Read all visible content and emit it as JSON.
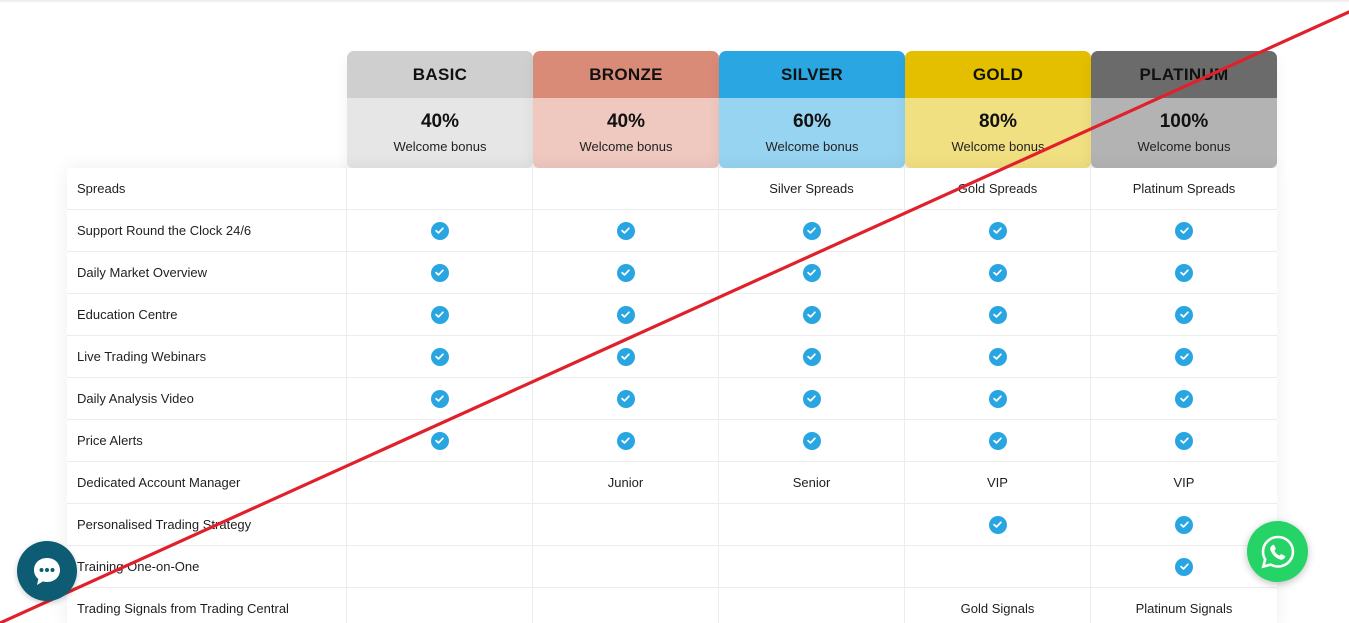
{
  "colors": {
    "basic_head": "#cfcfcf",
    "basic_body": "#e6e6e6",
    "bronze_head": "#d98b77",
    "bronze_body": "#efc8bf",
    "silver_head": "#2aa6e2",
    "silver_body": "#97d4f1",
    "gold_head": "#e3bf00",
    "gold_body": "#f1e081",
    "platinum_head": "#6b6b6b",
    "platinum_body": "#b3b3b3",
    "check": "#29a6e2",
    "strike_line": "#e0212c",
    "chat_bubble": "#0d5c73",
    "whatsapp": "#25d366"
  },
  "plans": [
    {
      "name": "BASIC",
      "percent": "40%",
      "bonus": "Welcome bonus"
    },
    {
      "name": "BRONZE",
      "percent": "40%",
      "bonus": "Welcome bonus"
    },
    {
      "name": "SILVER",
      "percent": "60%",
      "bonus": "Welcome bonus"
    },
    {
      "name": "GOLD",
      "percent": "80%",
      "bonus": "Welcome bonus"
    },
    {
      "name": "PLATINUM",
      "percent": "100%",
      "bonus": "Welcome bonus"
    }
  ],
  "features": [
    {
      "label": "Spreads",
      "cells": [
        "",
        "",
        "Silver Spreads",
        "Gold Spreads",
        "Platinum Spreads"
      ]
    },
    {
      "label": "Support Round the Clock 24/6",
      "cells": [
        "check",
        "check",
        "check",
        "check",
        "check"
      ]
    },
    {
      "label": "Daily Market Overview",
      "cells": [
        "check",
        "check",
        "check",
        "check",
        "check"
      ]
    },
    {
      "label": "Education Centre",
      "cells": [
        "check",
        "check",
        "check",
        "check",
        "check"
      ]
    },
    {
      "label": "Live Trading Webinars",
      "cells": [
        "check",
        "check",
        "check",
        "check",
        "check"
      ]
    },
    {
      "label": "Daily Analysis Video",
      "cells": [
        "check",
        "check",
        "check",
        "check",
        "check"
      ]
    },
    {
      "label": "Price Alerts",
      "cells": [
        "check",
        "check",
        "check",
        "check",
        "check"
      ]
    },
    {
      "label": "Dedicated Account Manager",
      "cells": [
        "",
        "Junior",
        "Senior",
        "VIP",
        "VIP"
      ]
    },
    {
      "label": "Personalised Trading Strategy",
      "cells": [
        "",
        "",
        "",
        "check",
        "check"
      ]
    },
    {
      "label": "Training One-on-One",
      "cells": [
        "",
        "",
        "",
        "",
        "check"
      ]
    },
    {
      "label": "Trading Signals from Trading Central",
      "cells": [
        "",
        "",
        "",
        "Gold Signals",
        "Platinum Signals"
      ]
    }
  ],
  "icons": {
    "check": "check-circle-icon",
    "chat": "chat-bubble-icon",
    "whatsapp": "whatsapp-icon"
  }
}
